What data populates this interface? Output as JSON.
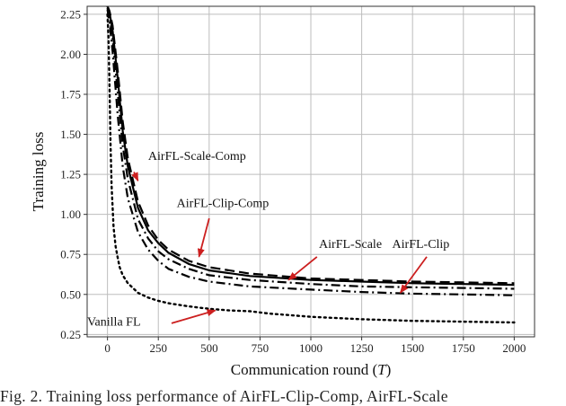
{
  "chart_data": {
    "type": "line",
    "xlabel_prefix": "Communication round (",
    "xlabel_var": "T",
    "xlabel_suffix": ")",
    "ylabel": "Training loss",
    "xlim": [
      -100,
      2100
    ],
    "ylim": [
      0.235,
      2.3
    ],
    "xticks": [
      0,
      250,
      500,
      750,
      1000,
      1250,
      1500,
      1750,
      2000
    ],
    "yticks": [
      0.25,
      0.5,
      0.75,
      1.0,
      1.25,
      1.5,
      1.75,
      2.0,
      2.25
    ],
    "ytick_labels": [
      "0.25",
      "0.50",
      "0.75",
      "1.00",
      "1.25",
      "1.50",
      "1.75",
      "2.00",
      "2.25"
    ],
    "grid": true,
    "series": [
      {
        "name": "AirFL-Scale-Comp",
        "style": "longdash",
        "x": [
          0,
          10,
          25,
          50,
          75,
          100,
          150,
          200,
          250,
          300,
          400,
          500,
          700,
          1000,
          1250,
          1500,
          1750,
          2000
        ],
        "y": [
          2.3,
          2.27,
          2.18,
          1.9,
          1.58,
          1.35,
          1.08,
          0.93,
          0.84,
          0.78,
          0.71,
          0.67,
          0.63,
          0.6,
          0.59,
          0.58,
          0.575,
          0.57
        ]
      },
      {
        "name": "AirFL-Scale",
        "style": "solid",
        "x": [
          0,
          10,
          25,
          50,
          75,
          100,
          150,
          200,
          250,
          300,
          400,
          500,
          700,
          1000,
          1250,
          1500,
          1750,
          2000
        ],
        "y": [
          2.3,
          2.26,
          2.15,
          1.85,
          1.52,
          1.3,
          1.04,
          0.9,
          0.82,
          0.76,
          0.69,
          0.65,
          0.615,
          0.59,
          0.58,
          0.57,
          0.565,
          0.56
        ]
      },
      {
        "name": "AirFL-Clip-Comp",
        "style": "dashdot",
        "x": [
          0,
          10,
          25,
          50,
          75,
          100,
          150,
          200,
          250,
          300,
          400,
          500,
          700,
          1000,
          1250,
          1500,
          1750,
          2000
        ],
        "y": [
          2.29,
          2.24,
          2.1,
          1.76,
          1.43,
          1.22,
          0.97,
          0.85,
          0.77,
          0.72,
          0.66,
          0.62,
          0.59,
          0.565,
          0.55,
          0.545,
          0.54,
          0.535
        ]
      },
      {
        "name": "AirFL-Clip",
        "style": "dashdot",
        "x": [
          0,
          10,
          25,
          50,
          75,
          100,
          150,
          200,
          250,
          300,
          400,
          500,
          700,
          1000,
          1250,
          1500,
          1750,
          2000
        ],
        "y": [
          2.28,
          2.2,
          2.02,
          1.62,
          1.3,
          1.1,
          0.89,
          0.78,
          0.71,
          0.66,
          0.61,
          0.58,
          0.55,
          0.53,
          0.515,
          0.505,
          0.5,
          0.495
        ]
      },
      {
        "name": "Vanilla FL",
        "style": "dotted",
        "x": [
          0,
          5,
          10,
          15,
          20,
          30,
          40,
          50,
          60,
          75,
          100,
          150,
          200,
          250,
          300,
          400,
          500,
          600,
          700,
          800,
          900,
          1000,
          1250,
          1500,
          1750,
          2000
        ],
        "y": [
          2.25,
          2.1,
          1.8,
          1.45,
          1.18,
          0.92,
          0.8,
          0.73,
          0.67,
          0.62,
          0.57,
          0.51,
          0.48,
          0.46,
          0.445,
          0.425,
          0.41,
          0.4,
          0.395,
          0.38,
          0.37,
          0.36,
          0.345,
          0.335,
          0.33,
          0.325
        ]
      }
    ],
    "annotations": [
      {
        "text": "AirFL-Scale-Comp",
        "text_x": 200,
        "text_y": 1.34,
        "arrow_from": [
          130,
          1.265
        ],
        "arrow_to": [
          150,
          1.21
        ],
        "anchor": "start"
      },
      {
        "text": "AirFL-Clip-Comp",
        "text_x": 340,
        "text_y": 1.045,
        "arrow_from": [
          500,
          0.975
        ],
        "arrow_to": [
          450,
          0.735
        ],
        "anchor": "start"
      },
      {
        "text": "AirFL-Scale",
        "text_x": 1040,
        "text_y": 0.79,
        "arrow_from": [
          1030,
          0.735
        ],
        "arrow_to": [
          890,
          0.59
        ],
        "anchor": "start"
      },
      {
        "text": "AirFL-Clip",
        "text_x": 1400,
        "text_y": 0.79,
        "arrow_from": [
          1570,
          0.735
        ],
        "arrow_to": [
          1440,
          0.51
        ],
        "anchor": "start"
      },
      {
        "text": "Vanilla FL",
        "text_x": -100,
        "text_y": 0.305,
        "arrow_from": [
          315,
          0.32
        ],
        "arrow_to": [
          530,
          0.4
        ],
        "anchor": "start"
      }
    ]
  },
  "caption": "Fig. 2.   Training loss performance of AirFL-Clip-Comp, AirFL-Scale"
}
